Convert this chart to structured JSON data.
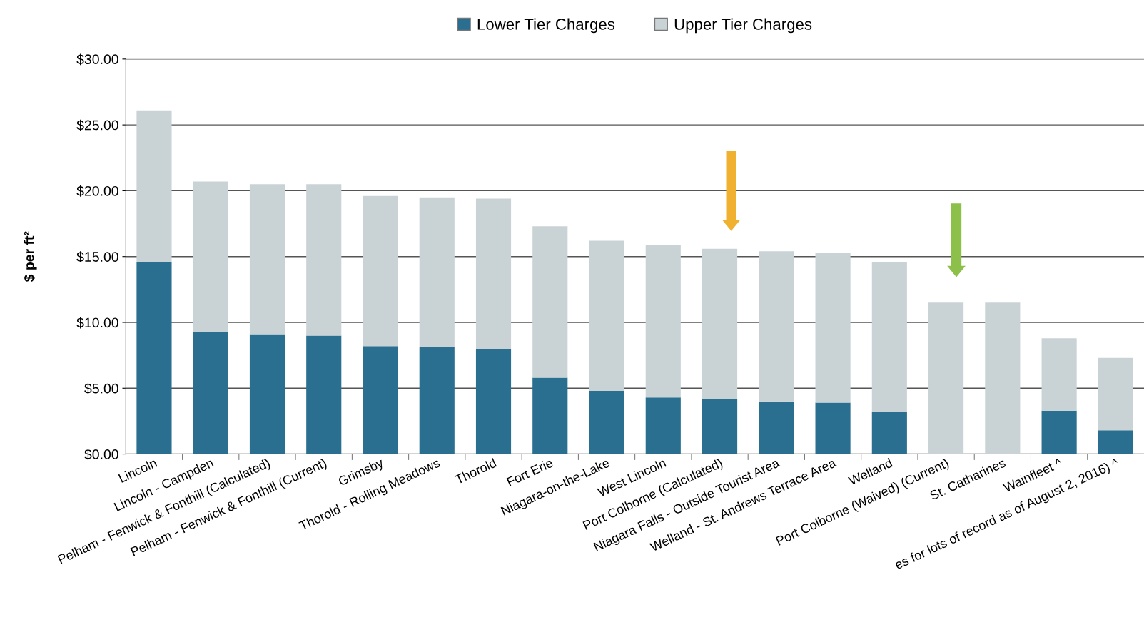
{
  "chart_data": {
    "type": "bar",
    "stacked": true,
    "ylabel": "$ per ft²",
    "categories": [
      "Lincoln",
      "Lincoln - Campden",
      "Pelham - Fenwick & Fonthill (Calculated)",
      "Pelham - Fenwick & Fonthill (Current)",
      "Grimsby",
      "Thorold - Rolling Meadows",
      "Thorold",
      "Fort Erie",
      "Niagara-on-the-Lake",
      "West Lincoln",
      "Port Colborne (Calculated)",
      "Niagara Falls - Outside Tourist Area",
      "Welland - St. Andrews Terrace Area",
      "Welland",
      "Port Colborne (Waived) (Current)",
      "St. Catharines",
      "Wainfleet ^",
      "es for lots of record as of August 2, 2016) ^"
    ],
    "series": [
      {
        "name": "Lower Tier Charges",
        "color": "#2a6f8f",
        "values": [
          14.6,
          9.3,
          9.1,
          9.0,
          8.2,
          8.1,
          8.0,
          5.8,
          4.8,
          4.3,
          4.2,
          4.0,
          3.9,
          3.2,
          0,
          0,
          3.3,
          1.8
        ]
      },
      {
        "name": "Upper Tier Charges",
        "color": "#c9d3d6",
        "values": [
          11.5,
          11.4,
          11.4,
          11.5,
          11.4,
          11.4,
          11.4,
          11.5,
          11.4,
          11.6,
          11.4,
          11.4,
          11.4,
          11.4,
          11.5,
          11.5,
          5.5,
          5.5
        ]
      }
    ],
    "ylim": [
      0,
      30
    ],
    "yticks": [
      {
        "value": 0,
        "label": "$0.00"
      },
      {
        "value": 5,
        "label": "$5.00"
      },
      {
        "value": 10,
        "label": "$10.00"
      },
      {
        "value": 15,
        "label": "$15.00"
      },
      {
        "value": 20,
        "label": "$20.00"
      },
      {
        "value": 25,
        "label": "$25.00"
      },
      {
        "value": 30,
        "label": "$30.00"
      }
    ],
    "grid": "y",
    "legend": "top"
  }
}
